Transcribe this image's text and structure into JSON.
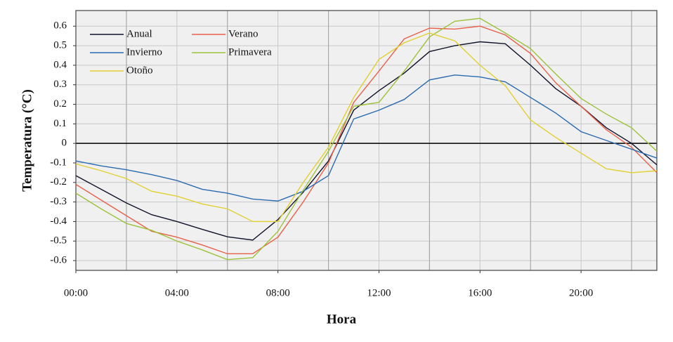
{
  "chart_data": {
    "type": "line",
    "xlabel": "Hora",
    "ylabel": "Temperatura (°C)",
    "x": [
      0,
      1,
      2,
      3,
      4,
      5,
      6,
      7,
      8,
      9,
      10,
      11,
      12,
      13,
      14,
      15,
      16,
      17,
      18,
      19,
      20,
      21,
      22,
      23
    ],
    "series": [
      {
        "name": "Anual",
        "color": "#10122a",
        "values": [
          -0.165,
          -0.235,
          -0.305,
          -0.365,
          -0.4,
          -0.44,
          -0.478,
          -0.495,
          -0.39,
          -0.25,
          -0.09,
          0.17,
          0.27,
          0.36,
          0.47,
          0.5,
          0.52,
          0.51,
          0.4,
          0.28,
          0.19,
          0.08,
          0.0,
          -0.11
        ]
      },
      {
        "name": "Verano",
        "color": "#e8604a",
        "values": [
          -0.21,
          -0.29,
          -0.37,
          -0.45,
          -0.48,
          -0.52,
          -0.565,
          -0.565,
          -0.48,
          -0.3,
          -0.1,
          0.21,
          0.37,
          0.535,
          0.59,
          0.585,
          0.6,
          0.555,
          0.46,
          0.31,
          0.19,
          0.07,
          -0.02,
          -0.15
        ]
      },
      {
        "name": "Invierno",
        "color": "#2a6ab0",
        "values": [
          -0.09,
          -0.115,
          -0.135,
          -0.16,
          -0.19,
          -0.235,
          -0.255,
          -0.285,
          -0.295,
          -0.245,
          -0.165,
          0.125,
          0.17,
          0.225,
          0.325,
          0.35,
          0.34,
          0.315,
          0.235,
          0.155,
          0.06,
          0.015,
          -0.03,
          -0.075
        ]
      },
      {
        "name": "Primavera",
        "color": "#9dc23a",
        "values": [
          -0.255,
          -0.335,
          -0.41,
          -0.445,
          -0.5,
          -0.545,
          -0.595,
          -0.585,
          -0.45,
          -0.24,
          -0.04,
          0.19,
          0.21,
          0.37,
          0.545,
          0.625,
          0.64,
          0.565,
          0.485,
          0.355,
          0.23,
          0.15,
          0.08,
          -0.04
        ]
      },
      {
        "name": "Otoño",
        "color": "#e0d030",
        "values": [
          -0.105,
          -0.14,
          -0.18,
          -0.245,
          -0.27,
          -0.31,
          -0.335,
          -0.4,
          -0.4,
          -0.2,
          -0.02,
          0.235,
          0.43,
          0.515,
          0.565,
          0.525,
          0.4,
          0.295,
          0.12,
          0.03,
          -0.05,
          -0.13,
          -0.15,
          -0.14
        ]
      }
    ],
    "xlim": [
      0,
      23
    ],
    "ylim": [
      -0.65,
      0.68
    ],
    "xticks": [
      {
        "value": 0,
        "label": "00:00"
      },
      {
        "value": 4,
        "label": "04:00"
      },
      {
        "value": 8,
        "label": "08:00"
      },
      {
        "value": 12,
        "label": "12:00"
      },
      {
        "value": 16,
        "label": "16:00"
      },
      {
        "value": 20,
        "label": "20:00"
      }
    ],
    "xminor": [
      2,
      6,
      10,
      14,
      18,
      22
    ],
    "yticks": [
      -0.6,
      -0.5,
      -0.4,
      -0.3,
      -0.2,
      -0.1,
      0,
      0.1,
      0.2,
      0.3,
      0.4,
      0.5,
      0.6
    ],
    "grid": true,
    "legend": "upper left",
    "legend_columns": 2
  }
}
